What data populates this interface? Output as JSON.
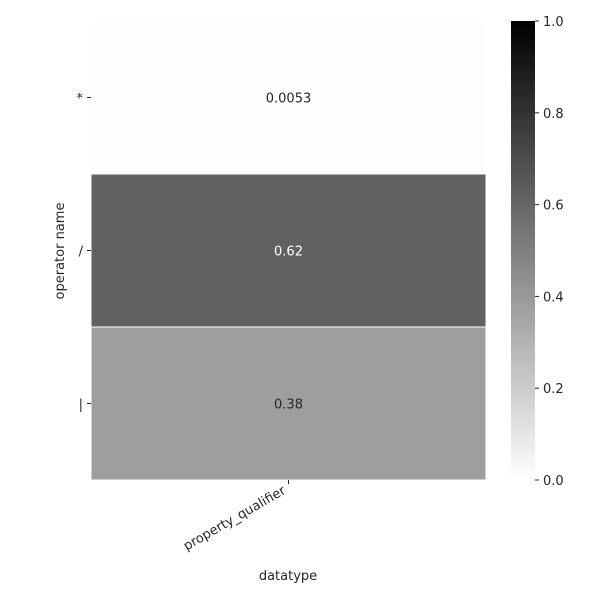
{
  "chart_data": {
    "type": "heatmap",
    "title": "",
    "xlabel": "datatype",
    "ylabel": "operator name",
    "x_categories": [
      "property_qualifier"
    ],
    "y_categories": [
      "*",
      "/",
      "|"
    ],
    "values": [
      [
        0.0053
      ],
      [
        0.62
      ],
      [
        0.38
      ]
    ],
    "value_labels": [
      [
        "0.0053"
      ],
      [
        "0.62"
      ],
      [
        "0.38"
      ]
    ],
    "colorbar": {
      "range": [
        0,
        1
      ],
      "ticks": [
        0.0,
        0.2,
        0.4,
        0.6,
        0.8,
        1.0
      ],
      "tick_labels": [
        "0.0",
        "0.2",
        "0.4",
        "0.6",
        "0.8",
        "1.0"
      ],
      "colormap": "Greys",
      "low_color": "#ffffff",
      "high_color": "#000000"
    },
    "grid": false
  }
}
